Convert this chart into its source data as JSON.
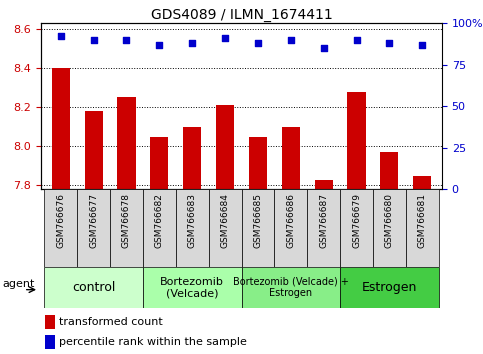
{
  "title": "GDS4089 / ILMN_1674411",
  "samples": [
    "GSM766676",
    "GSM766677",
    "GSM766678",
    "GSM766682",
    "GSM766683",
    "GSM766684",
    "GSM766685",
    "GSM766686",
    "GSM766687",
    "GSM766679",
    "GSM766680",
    "GSM766681"
  ],
  "bar_values": [
    8.4,
    8.18,
    8.25,
    8.05,
    8.1,
    8.21,
    8.05,
    8.1,
    7.83,
    8.28,
    7.97,
    7.85
  ],
  "percentile_values": [
    92,
    90,
    90,
    87,
    88,
    91,
    88,
    90,
    85,
    90,
    88,
    87
  ],
  "ylim_left": [
    7.78,
    8.63
  ],
  "ylim_right": [
    0,
    100
  ],
  "yticks_left": [
    7.8,
    8.0,
    8.2,
    8.4,
    8.6
  ],
  "yticks_right": [
    0,
    25,
    50,
    75,
    100
  ],
  "bar_color": "#cc0000",
  "dot_color": "#0000cc",
  "agent_groups": [
    {
      "label": "control",
      "start": 0,
      "end": 3,
      "color": "#ccffcc"
    },
    {
      "label": "Bortezomib\n(Velcade)",
      "start": 3,
      "end": 6,
      "color": "#aaffaa"
    },
    {
      "label": "Bortezomib (Velcade) +\nEstrogen",
      "start": 6,
      "end": 9,
      "color": "#88ee88"
    },
    {
      "label": "Estrogen",
      "start": 9,
      "end": 12,
      "color": "#44cc44"
    }
  ],
  "legend_bar_label": "transformed count",
  "legend_dot_label": "percentile rank within the sample",
  "agent_label": "agent",
  "left_tick_color": "#cc0000",
  "right_tick_color": "#0000cc"
}
